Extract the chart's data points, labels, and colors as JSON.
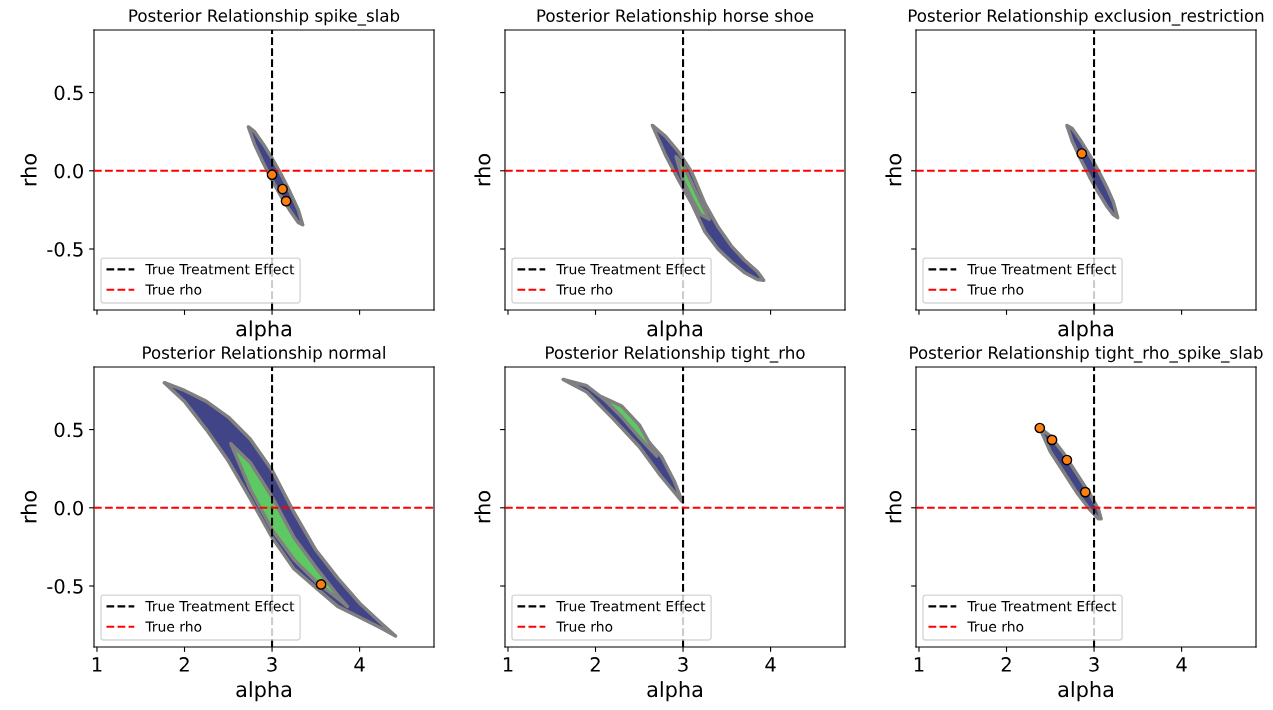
{
  "chart_data": [
    {
      "type": "area",
      "title": "Posterior Relationship spike_slab",
      "xlabel": "alpha",
      "ylabel": "rho",
      "xlim": [
        0.966,
        4.85
      ],
      "ylim": [
        -0.89,
        0.9
      ],
      "xticks": [
        1,
        2,
        3,
        4
      ],
      "yticks": [
        -0.5,
        {
          "value": 0,
          "label": "0.0"
        },
        0.5
      ],
      "tick_labels": "y",
      "legend": "lower left",
      "grid": false,
      "ref_lines": [
        {
          "axis": "x",
          "value": 3,
          "label": "True Treatment Effect",
          "color": "#000000",
          "line_style": "dashed"
        },
        {
          "axis": "y",
          "value": 0,
          "label": "True rho",
          "color": "#ff0000",
          "line_style": "dashed"
        }
      ],
      "series": [
        {
          "type": "area",
          "color": "#414487",
          "x": [
            2.73,
            2.8,
            2.9,
            3.0,
            3.1,
            3.2,
            3.3,
            3.35,
            3.3,
            3.2,
            3.1,
            3.0,
            2.9,
            2.8
          ],
          "values": [
            0.28,
            0.25,
            0.17,
            0.08,
            -0.02,
            -0.13,
            -0.25,
            -0.345,
            -0.33,
            -0.25,
            -0.16,
            -0.06,
            0.05,
            0.17
          ]
        },
        {
          "type": "scatter",
          "color": "#ff7f0e",
          "marker": "circle",
          "x": [
            3.0,
            3.12,
            3.16
          ],
          "values": [
            -0.025,
            -0.117,
            -0.194
          ]
        }
      ]
    },
    {
      "type": "area",
      "title": "Posterior Relationship horse shoe",
      "xlabel": "alpha",
      "ylabel": "rho",
      "xlim": [
        0.966,
        4.85
      ],
      "ylim": [
        -0.89,
        0.9
      ],
      "xticks": [
        1,
        2,
        3,
        4
      ],
      "yticks": [
        -0.5,
        0,
        0.5
      ],
      "tick_labels": false,
      "legend": "lower left",
      "grid": false,
      "ref_lines": [
        {
          "axis": "x",
          "value": 3,
          "label": "True Treatment Effect",
          "color": "#000000",
          "line_style": "dashed"
        },
        {
          "axis": "y",
          "value": 0,
          "label": "True rho",
          "color": "#ff0000",
          "line_style": "dashed"
        }
      ],
      "series": [
        {
          "type": "area",
          "color": "#414487",
          "x": [
            2.65,
            2.8,
            2.95,
            3.1,
            3.25,
            3.4,
            3.55,
            3.7,
            3.85,
            3.92,
            3.85,
            3.7,
            3.55,
            3.4,
            3.25,
            3.1,
            2.95,
            2.8
          ],
          "values": [
            0.29,
            0.22,
            0.12,
            -0.01,
            -0.21,
            -0.36,
            -0.48,
            -0.57,
            -0.645,
            -0.7,
            -0.695,
            -0.65,
            -0.58,
            -0.5,
            -0.39,
            -0.21,
            -0.06,
            0.1
          ]
        },
        {
          "type": "area",
          "color": "#5ec962",
          "x": [
            2.92,
            3.0,
            3.1,
            3.2,
            3.3,
            3.2,
            3.1,
            3.0
          ],
          "values": [
            0.09,
            0.04,
            -0.08,
            -0.2,
            -0.31,
            -0.28,
            -0.18,
            -0.06
          ]
        }
      ]
    },
    {
      "type": "area",
      "title": "Posterior Relationship exclusion_restriction",
      "xlabel": "alpha",
      "ylabel": "rho",
      "xlim": [
        0.966,
        4.85
      ],
      "ylim": [
        -0.89,
        0.9
      ],
      "xticks": [
        1,
        2,
        3,
        4
      ],
      "yticks": [
        -0.5,
        0,
        0.5
      ],
      "tick_labels": false,
      "legend": "lower left",
      "grid": false,
      "ref_lines": [
        {
          "axis": "x",
          "value": 3,
          "label": "True Treatment Effect",
          "color": "#000000",
          "line_style": "dashed"
        },
        {
          "axis": "y",
          "value": 0,
          "label": "True rho",
          "color": "#ff0000",
          "line_style": "dashed"
        }
      ],
      "series": [
        {
          "type": "area",
          "color": "#414487",
          "x": [
            2.69,
            2.75,
            2.85,
            2.95,
            3.05,
            3.15,
            3.22,
            3.27,
            3.22,
            3.15,
            3.05,
            2.95,
            2.85,
            2.75
          ],
          "values": [
            0.29,
            0.27,
            0.19,
            0.1,
            0.0,
            -0.11,
            -0.2,
            -0.3,
            -0.28,
            -0.23,
            -0.14,
            -0.04,
            0.07,
            0.19
          ]
        },
        {
          "type": "scatter",
          "color": "#ff7f0e",
          "marker": "circle",
          "x": [
            2.86
          ],
          "values": [
            0.11
          ]
        }
      ]
    },
    {
      "type": "area",
      "title": "Posterior Relationship normal",
      "xlabel": "alpha",
      "ylabel": "rho",
      "xlim": [
        0.966,
        4.85
      ],
      "ylim": [
        -0.89,
        0.9
      ],
      "xticks": [
        1,
        2,
        3,
        4
      ],
      "yticks": [
        -0.5,
        {
          "value": 0,
          "label": "0.0"
        },
        0.5
      ],
      "legend": "lower left",
      "grid": false,
      "ref_lines": [
        {
          "axis": "x",
          "value": 3,
          "label": "True Treatment Effect",
          "color": "#000000",
          "line_style": "dashed"
        },
        {
          "axis": "y",
          "value": 0,
          "label": "True rho",
          "color": "#ff0000",
          "line_style": "dashed"
        }
      ],
      "series": [
        {
          "type": "area",
          "color": "#414487",
          "x": [
            1.77,
            2.0,
            2.25,
            2.5,
            2.75,
            3.0,
            3.25,
            3.5,
            3.75,
            4.0,
            4.25,
            4.41,
            4.25,
            4.0,
            3.75,
            3.5,
            3.25,
            3.0,
            2.75,
            2.5,
            2.25,
            2.0
          ],
          "values": [
            0.8,
            0.75,
            0.68,
            0.58,
            0.44,
            0.24,
            -0.03,
            -0.27,
            -0.45,
            -0.61,
            -0.74,
            -0.82,
            -0.77,
            -0.7,
            -0.63,
            -0.51,
            -0.39,
            -0.19,
            0.06,
            0.3,
            0.5,
            0.68
          ]
        },
        {
          "type": "area",
          "color": "#5ec962",
          "x": [
            2.53,
            2.75,
            3.0,
            3.25,
            3.5,
            3.75,
            3.86,
            3.75,
            3.5,
            3.25,
            3.0,
            2.75
          ],
          "values": [
            0.41,
            0.29,
            0.07,
            -0.19,
            -0.38,
            -0.56,
            -0.63,
            -0.58,
            -0.47,
            -0.33,
            -0.14,
            0.12
          ]
        },
        {
          "type": "scatter",
          "color": "#ff7f0e",
          "marker": "circle",
          "x": [
            3.56
          ],
          "values": [
            -0.49
          ]
        }
      ]
    },
    {
      "type": "area",
      "title": "Posterior Relationship tight_rho",
      "xlabel": "alpha",
      "ylabel": "rho",
      "xlim": [
        0.966,
        4.85
      ],
      "ylim": [
        -0.89,
        0.9
      ],
      "xticks": [
        1,
        2,
        3,
        4
      ],
      "yticks": [
        -0.5,
        0,
        0.5
      ],
      "tick_labels": "x",
      "legend": "lower left",
      "grid": false,
      "ref_lines": [
        {
          "axis": "x",
          "value": 3,
          "label": "True Treatment Effect",
          "color": "#000000",
          "line_style": "dashed"
        },
        {
          "axis": "y",
          "value": 0,
          "label": "True rho",
          "color": "#ff0000",
          "line_style": "dashed"
        }
      ],
      "series": [
        {
          "type": "area",
          "color": "#414487",
          "x": [
            1.63,
            1.9,
            2.2,
            2.5,
            2.75,
            2.9,
            2.99,
            2.9,
            2.75,
            2.5,
            2.2,
            1.9
          ],
          "values": [
            0.82,
            0.78,
            0.65,
            0.49,
            0.33,
            0.17,
            0.04,
            0.1,
            0.2,
            0.39,
            0.57,
            0.74
          ]
        },
        {
          "type": "area",
          "color": "#5ec962",
          "x": [
            2.07,
            2.3,
            2.5,
            2.7,
            2.5,
            2.3
          ],
          "values": [
            0.71,
            0.65,
            0.53,
            0.33,
            0.45,
            0.58
          ]
        }
      ]
    },
    {
      "type": "area",
      "title": "Posterior Relationship tight_rho_spike_slab",
      "xlabel": "alpha",
      "ylabel": "rho",
      "xlim": [
        0.966,
        4.85
      ],
      "ylim": [
        -0.89,
        0.9
      ],
      "xticks": [
        1,
        2,
        3,
        4
      ],
      "yticks": [
        -0.5,
        0,
        0.5
      ],
      "tick_labels": "x",
      "legend": "lower left",
      "grid": false,
      "ref_lines": [
        {
          "axis": "x",
          "value": 3,
          "label": "True Treatment Effect",
          "color": "#000000",
          "line_style": "dashed"
        },
        {
          "axis": "y",
          "value": 0,
          "label": "True rho",
          "color": "#ff0000",
          "line_style": "dashed"
        }
      ],
      "series": [
        {
          "type": "area",
          "color": "#414487",
          "x": [
            2.38,
            2.5,
            2.65,
            2.8,
            2.95,
            3.05,
            3.08,
            3.05,
            2.95,
            2.8,
            2.65,
            2.5
          ],
          "values": [
            0.51,
            0.46,
            0.35,
            0.22,
            0.09,
            -0.01,
            -0.07,
            -0.07,
            -0.01,
            0.1,
            0.23,
            0.36
          ]
        },
        {
          "type": "scatter",
          "color": "#ff7f0e",
          "marker": "circle",
          "x": [
            2.38,
            2.52,
            2.69,
            2.9
          ],
          "values": [
            0.51,
            0.434,
            0.305,
            0.1
          ]
        }
      ]
    }
  ]
}
